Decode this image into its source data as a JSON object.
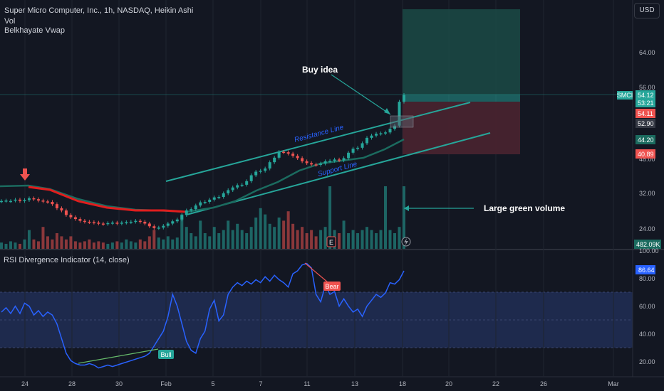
{
  "header": {
    "title": "Super Micro Computer, Inc., 1h, NASDAQ, Heikin Ashi",
    "vol_label": "Vol",
    "vwap_label": "Belkhayate Vwap",
    "currency": "USD"
  },
  "rsi_panel": {
    "title": "RSI Divergence Indicator (14, close)"
  },
  "price_axis": {
    "ticks": [
      "64.00",
      "56.00",
      "48.00",
      "32.00",
      "24.00"
    ],
    "symbol_label": "SMCI",
    "last_price": "54.12",
    "countdown": "53:21",
    "label_red": "54.11",
    "label_grey": "52.90",
    "label_green": "44.20",
    "label_red2": "40.89",
    "volume_label": "482.09K"
  },
  "rsi_axis": {
    "ticks": [
      "100.00",
      "80.00",
      "60.00",
      "40.00",
      "20.00"
    ],
    "current": "86.64"
  },
  "time_axis": {
    "ticks": [
      "24",
      "28",
      "30",
      "Feb",
      "5",
      "7",
      "11",
      "13",
      "18",
      "20",
      "22",
      "26",
      "Mar"
    ]
  },
  "annotations": {
    "buy_idea": "Buy idea",
    "resistance": "Resistance Line",
    "support": "Support Line",
    "large_volume": "Large green volume",
    "bull": "Bull",
    "bear": "Bear",
    "earnings": "E"
  },
  "colors": {
    "background": "#131722",
    "up": "#26a69a",
    "down": "#ef5350",
    "rsi_line": "#2962ff",
    "vwap": "#1b6b5f",
    "trendline": "#26a69a"
  },
  "chart_data": {
    "type": "candlestick",
    "symbol": "SMCI",
    "exchange": "NASDAQ",
    "interval": "1h",
    "style": "Heikin Ashi",
    "price_range": [
      20,
      72
    ],
    "candles": [
      {
        "o": 30.5,
        "c": 30.6
      },
      {
        "o": 30.6,
        "c": 30.7
      },
      {
        "o": 30.6,
        "c": 30.6
      },
      {
        "o": 30.7,
        "c": 30.9
      },
      {
        "o": 30.9,
        "c": 30.6
      },
      {
        "o": 30.6,
        "c": 30.8
      },
      {
        "o": 30.8,
        "c": 31.2
      },
      {
        "o": 31.2,
        "c": 31.0
      },
      {
        "o": 31.0,
        "c": 30.7
      },
      {
        "o": 30.7,
        "c": 30.5
      },
      {
        "o": 30.5,
        "c": 30.4
      },
      {
        "o": 30.4,
        "c": 29.9
      },
      {
        "o": 29.9,
        "c": 29.0
      },
      {
        "o": 29.0,
        "c": 28.5
      },
      {
        "o": 28.5,
        "c": 27.5
      },
      {
        "o": 27.5,
        "c": 27.0
      },
      {
        "o": 27.0,
        "c": 26.6
      },
      {
        "o": 26.6,
        "c": 26.2
      },
      {
        "o": 26.2,
        "c": 26.0
      },
      {
        "o": 26.0,
        "c": 25.9
      },
      {
        "o": 25.9,
        "c": 25.8
      },
      {
        "o": 25.8,
        "c": 25.6
      },
      {
        "o": 25.6,
        "c": 25.5
      },
      {
        "o": 25.5,
        "c": 25.7
      },
      {
        "o": 25.7,
        "c": 25.8
      },
      {
        "o": 25.8,
        "c": 25.6
      },
      {
        "o": 25.6,
        "c": 25.8
      },
      {
        "o": 25.8,
        "c": 25.9
      },
      {
        "o": 25.9,
        "c": 26.0
      },
      {
        "o": 26.0,
        "c": 26.2
      },
      {
        "o": 26.2,
        "c": 26.0
      },
      {
        "o": 26.0,
        "c": 25.6
      },
      {
        "o": 25.6,
        "c": 25.0
      },
      {
        "o": 25.0,
        "c": 24.6
      },
      {
        "o": 24.6,
        "c": 24.7
      },
      {
        "o": 24.7,
        "c": 25.1
      },
      {
        "o": 25.1,
        "c": 25.6
      },
      {
        "o": 25.6,
        "c": 26.1
      },
      {
        "o": 26.1,
        "c": 26.5
      },
      {
        "o": 26.5,
        "c": 27.5
      },
      {
        "o": 27.5,
        "c": 28.5
      },
      {
        "o": 28.5,
        "c": 28.8
      },
      {
        "o": 28.8,
        "c": 29.6
      },
      {
        "o": 29.6,
        "c": 30.3
      },
      {
        "o": 30.3,
        "c": 30.4
      },
      {
        "o": 30.4,
        "c": 30.9
      },
      {
        "o": 30.9,
        "c": 31.4
      },
      {
        "o": 31.4,
        "c": 31.5
      },
      {
        "o": 31.5,
        "c": 32.3
      },
      {
        "o": 32.3,
        "c": 33.0
      },
      {
        "o": 33.0,
        "c": 33.6
      },
      {
        "o": 33.6,
        "c": 34.1
      },
      {
        "o": 34.1,
        "c": 34.2
      },
      {
        "o": 34.2,
        "c": 35.0
      },
      {
        "o": 35.0,
        "c": 36.3
      },
      {
        "o": 36.3,
        "c": 37.1
      },
      {
        "o": 37.1,
        "c": 37.3
      },
      {
        "o": 37.3,
        "c": 37.8
      },
      {
        "o": 37.8,
        "c": 39.2
      },
      {
        "o": 39.2,
        "c": 40.2
      },
      {
        "o": 40.2,
        "c": 41.5
      },
      {
        "o": 41.5,
        "c": 41.4
      },
      {
        "o": 41.4,
        "c": 41.1
      },
      {
        "o": 41.1,
        "c": 40.6
      },
      {
        "o": 40.6,
        "c": 40.1
      },
      {
        "o": 40.1,
        "c": 39.4
      },
      {
        "o": 39.4,
        "c": 39.0
      },
      {
        "o": 39.0,
        "c": 38.7
      },
      {
        "o": 38.7,
        "c": 38.6
      },
      {
        "o": 38.6,
        "c": 38.9
      },
      {
        "o": 38.9,
        "c": 39.4
      },
      {
        "o": 39.4,
        "c": 39.5
      },
      {
        "o": 39.5,
        "c": 39.8
      },
      {
        "o": 39.8,
        "c": 39.6
      },
      {
        "o": 39.6,
        "c": 40.1
      },
      {
        "o": 40.1,
        "c": 41.3
      },
      {
        "o": 41.3,
        "c": 42.2
      },
      {
        "o": 42.2,
        "c": 42.4
      },
      {
        "o": 42.4,
        "c": 43.4
      },
      {
        "o": 43.4,
        "c": 44.6
      },
      {
        "o": 44.6,
        "c": 45.1
      },
      {
        "o": 45.1,
        "c": 45.5
      },
      {
        "o": 45.5,
        "c": 45.6
      },
      {
        "o": 45.6,
        "c": 45.8
      },
      {
        "o": 45.8,
        "c": 46.6
      },
      {
        "o": 46.6,
        "c": 47.3
      },
      {
        "o": 47.3,
        "c": 52.6
      },
      {
        "o": 52.6,
        "c": 54.1
      }
    ],
    "volume_relative": [
      0.1,
      0.08,
      0.12,
      0.1,
      0.08,
      0.15,
      0.3,
      0.15,
      0.12,
      0.35,
      0.2,
      0.15,
      0.25,
      0.2,
      0.15,
      0.2,
      0.12,
      0.1,
      0.12,
      0.15,
      0.1,
      0.12,
      0.1,
      0.08,
      0.1,
      0.12,
      0.1,
      0.15,
      0.12,
      0.1,
      0.15,
      0.12,
      0.2,
      0.3,
      0.18,
      0.15,
      0.2,
      0.15,
      0.18,
      0.55,
      0.35,
      0.25,
      0.2,
      0.45,
      0.25,
      0.2,
      0.35,
      0.25,
      0.3,
      0.45,
      0.3,
      0.4,
      0.3,
      0.25,
      0.35,
      0.5,
      0.65,
      0.55,
      0.4,
      0.35,
      0.5,
      0.45,
      0.6,
      0.4,
      0.3,
      0.35,
      0.25,
      0.3,
      0.2,
      0.3,
      0.35,
      1.0,
      0.3,
      0.25,
      0.45,
      0.25,
      0.3,
      0.25,
      0.3,
      0.35,
      0.3,
      0.25,
      0.3,
      1.0,
      0.3,
      0.25,
      0.35,
      1.0
    ],
    "rsi_range": [
      15,
      100
    ],
    "rsi_values": [
      58,
      61,
      57,
      62,
      57,
      64,
      62,
      56,
      59,
      55,
      58,
      56,
      50,
      40,
      30,
      25,
      23,
      22,
      22,
      23,
      22,
      20,
      21,
      22,
      21,
      22,
      23,
      24,
      25,
      26,
      27,
      28,
      30,
      35,
      40,
      45,
      55,
      70,
      62,
      50,
      38,
      32,
      30,
      40,
      45,
      60,
      66,
      52,
      56,
      70,
      75,
      78,
      76,
      79,
      77,
      80,
      78,
      82,
      79,
      83,
      80,
      78,
      75,
      84,
      86,
      90,
      91,
      88,
      70,
      65,
      76,
      70,
      72,
      62,
      67,
      62,
      58,
      60,
      55,
      62,
      66,
      70,
      68,
      71,
      78,
      77,
      80,
      86
    ]
  }
}
